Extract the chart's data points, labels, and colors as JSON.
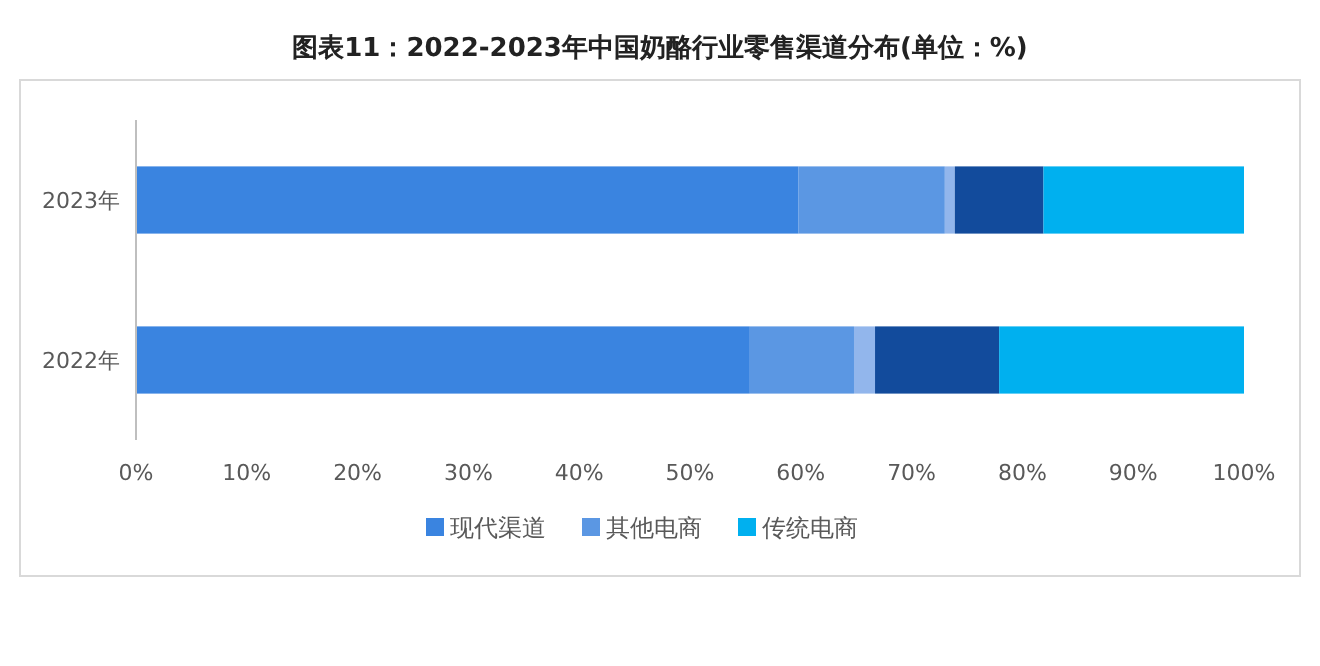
{
  "chart_data": {
    "type": "bar",
    "orientation": "horizontal",
    "stacked": true,
    "title": "图表11：2022-2023年中国奶酪行业零售渠道分布(单位：%)",
    "categories": [
      "2023年",
      "2022年"
    ],
    "series": [
      {
        "name": "现代渠道",
        "color": "#3a84e0",
        "values": [
          59.8,
          55.4
        ]
      },
      {
        "name": "其他电商",
        "color": "#5b97e3",
        "values": [
          13.2,
          9.4
        ]
      },
      {
        "color": "#92b6ec",
        "values": [
          0.9,
          1.9
        ]
      },
      {
        "color": "#124b9c",
        "values": [
          8,
          11.2
        ]
      },
      {
        "name": "传统电商",
        "color": "#00b0ef",
        "values": [
          18.1,
          22.1
        ]
      }
    ],
    "xlim": [
      0,
      100
    ],
    "xticks": [
      {
        "value": 0,
        "label": "0%"
      },
      {
        "value": 10,
        "label": "10%"
      },
      {
        "value": 20,
        "label": "20%"
      },
      {
        "value": 30,
        "label": "30%"
      },
      {
        "value": 40,
        "label": "40%"
      },
      {
        "value": 50,
        "label": "50%"
      },
      {
        "value": 60,
        "label": "60%"
      },
      {
        "value": 70,
        "label": "70%"
      },
      {
        "value": 80,
        "label": "80%"
      },
      {
        "value": 90,
        "label": "90%"
      },
      {
        "value": 100,
        "label": "100%"
      }
    ],
    "legend": "bottom"
  }
}
